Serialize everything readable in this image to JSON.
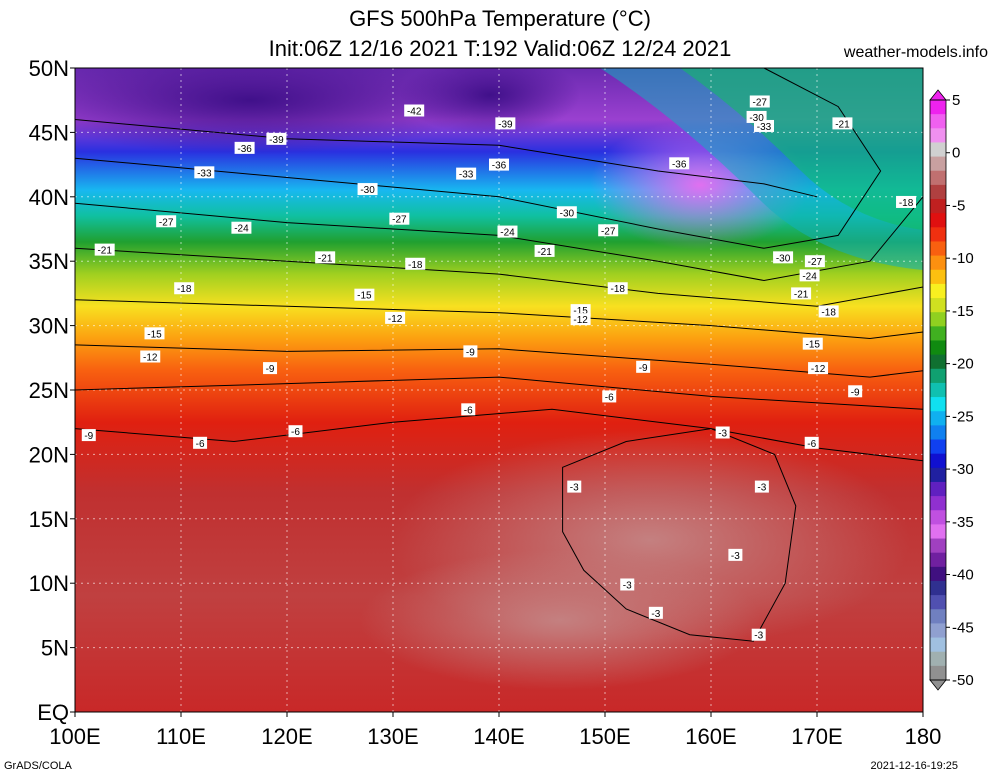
{
  "title_line1": "GFS 500hPa Temperature (°C)",
  "title_line2": "Init:06Z 12/16 2021 T:192 Valid:06Z 12/24 2021",
  "site": "weather-models.info",
  "credit": "GrADS/COLA",
  "timestamp": "2021-12-16-19:25",
  "lon_ticks": [
    "100E",
    "110E",
    "120E",
    "130E",
    "140E",
    "150E",
    "160E",
    "170E",
    "180"
  ],
  "lat_ticks": [
    "50N",
    "45N",
    "40N",
    "35N",
    "30N",
    "25N",
    "20N",
    "15N",
    "10N",
    "5N",
    "EQ"
  ],
  "colorbar": {
    "labels": [
      "5",
      "0",
      "-5",
      "-10",
      "-15",
      "-20",
      "-25",
      "-30",
      "-35",
      "-40",
      "-45",
      "-50"
    ],
    "colors": [
      "#ee22ee",
      "#f060f0",
      "#f090f0",
      "#d0d0d0",
      "#c8a0a0",
      "#c07070",
      "#b04040",
      "#c02020",
      "#e01010",
      "#f03010",
      "#f86010",
      "#fc9010",
      "#fcc010",
      "#f8f020",
      "#d0e020",
      "#90d020",
      "#40b020",
      "#108a10",
      "#107030",
      "#10a070",
      "#10c0b0",
      "#10e0f0",
      "#10b0f0",
      "#1080f0",
      "#1040f0",
      "#1010d0",
      "#2020a0",
      "#6020c0",
      "#9030d0",
      "#c050e0",
      "#e070f0",
      "#a040c0",
      "#7020a0",
      "#401080",
      "#303090",
      "#5050b0",
      "#7080c0",
      "#90a0d0",
      "#a0c0e0",
      "#a0b0b0",
      "#909090"
    ]
  },
  "contour_labels": [
    {
      "t": "-42",
      "lon": 132,
      "lat": 46.7
    },
    {
      "t": "-39",
      "lon": 140.6,
      "lat": 45.7
    },
    {
      "t": "-39",
      "lon": 119,
      "lat": 44.5
    },
    {
      "t": "-36",
      "lon": 116,
      "lat": 43.8
    },
    {
      "t": "-36",
      "lon": 140,
      "lat": 42.5
    },
    {
      "t": "-36",
      "lon": 157,
      "lat": 42.6
    },
    {
      "t": "-33",
      "lon": 112.2,
      "lat": 41.9
    },
    {
      "t": "-33",
      "lon": 136.9,
      "lat": 41.8
    },
    {
      "t": "-33",
      "lon": 165,
      "lat": 45.5
    },
    {
      "t": "-30",
      "lon": 127.6,
      "lat": 40.6
    },
    {
      "t": "-30",
      "lon": 146.4,
      "lat": 38.8
    },
    {
      "t": "-30",
      "lon": 164.3,
      "lat": 46.2
    },
    {
      "t": "-30",
      "lon": 166.8,
      "lat": 35.3
    },
    {
      "t": "-27",
      "lon": 108.6,
      "lat": 38.1
    },
    {
      "t": "-27",
      "lon": 130.6,
      "lat": 38.3
    },
    {
      "t": "-27",
      "lon": 150.3,
      "lat": 37.4
    },
    {
      "t": "-27",
      "lon": 164.6,
      "lat": 47.4
    },
    {
      "t": "-27",
      "lon": 169.8,
      "lat": 35
    },
    {
      "t": "-24",
      "lon": 115.7,
      "lat": 37.6
    },
    {
      "t": "-24",
      "lon": 140.8,
      "lat": 37.3
    },
    {
      "t": "-24",
      "lon": 169.3,
      "lat": 33.9
    },
    {
      "t": "-21",
      "lon": 102.8,
      "lat": 35.9
    },
    {
      "t": "-21",
      "lon": 123.6,
      "lat": 35.3
    },
    {
      "t": "-21",
      "lon": 144.3,
      "lat": 35.8
    },
    {
      "t": "-21",
      "lon": 168.5,
      "lat": 32.5
    },
    {
      "t": "-21",
      "lon": 172.4,
      "lat": 45.7
    },
    {
      "t": "-18",
      "lon": 110.3,
      "lat": 32.9
    },
    {
      "t": "-18",
      "lon": 132.1,
      "lat": 34.8
    },
    {
      "t": "-18",
      "lon": 151.2,
      "lat": 32.9
    },
    {
      "t": "-18",
      "lon": 171.1,
      "lat": 31.1
    },
    {
      "t": "-18",
      "lon": 178.4,
      "lat": 39.6
    },
    {
      "t": "-15",
      "lon": 107.5,
      "lat": 29.4
    },
    {
      "t": "-15",
      "lon": 127.3,
      "lat": 32.4
    },
    {
      "t": "-15",
      "lon": 147.7,
      "lat": 31.2
    },
    {
      "t": "-15",
      "lon": 169.6,
      "lat": 28.6
    },
    {
      "t": "-12",
      "lon": 107.1,
      "lat": 27.6
    },
    {
      "t": "-12",
      "lon": 130.2,
      "lat": 30.6
    },
    {
      "t": "-12",
      "lon": 147.7,
      "lat": 30.5
    },
    {
      "t": "-12",
      "lon": 170.1,
      "lat": 26.7
    },
    {
      "t": "-9",
      "lon": 101.3,
      "lat": 21.5
    },
    {
      "t": "-9",
      "lon": 118.4,
      "lat": 26.7
    },
    {
      "t": "-9",
      "lon": 137.3,
      "lat": 28
    },
    {
      "t": "-9",
      "lon": 153.6,
      "lat": 26.8
    },
    {
      "t": "-9",
      "lon": 173.6,
      "lat": 24.9
    },
    {
      "t": "-6",
      "lon": 111.8,
      "lat": 20.9
    },
    {
      "t": "-6",
      "lon": 120.8,
      "lat": 21.8
    },
    {
      "t": "-6",
      "lon": 137.1,
      "lat": 23.5
    },
    {
      "t": "-6",
      "lon": 150.4,
      "lat": 24.5
    },
    {
      "t": "-6",
      "lon": 169.5,
      "lat": 20.9
    },
    {
      "t": "-3",
      "lon": 161.1,
      "lat": 21.7
    },
    {
      "t": "-3",
      "lon": 147.1,
      "lat": 17.5
    },
    {
      "t": "-3",
      "lon": 164.8,
      "lat": 17.5
    },
    {
      "t": "-3",
      "lon": 162.3,
      "lat": 12.2
    },
    {
      "t": "-3",
      "lon": 152.1,
      "lat": 9.9
    },
    {
      "t": "-3",
      "lon": 154.8,
      "lat": 7.7
    },
    {
      "t": "-3",
      "lon": 164.5,
      "lat": 6
    }
  ]
}
